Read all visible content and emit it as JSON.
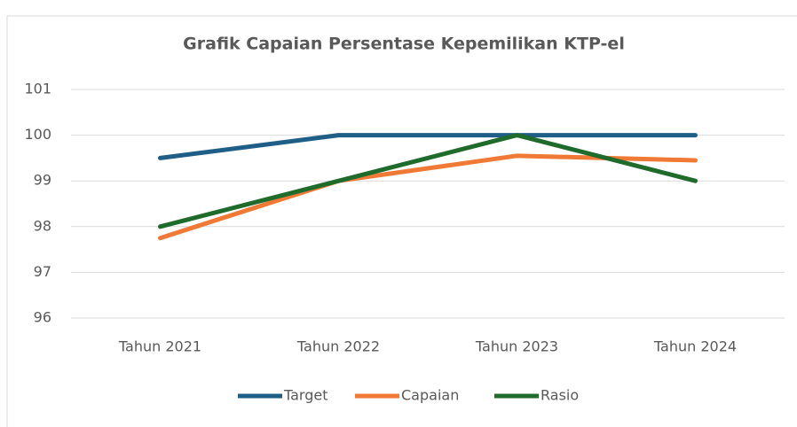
{
  "chart_data": {
    "type": "line",
    "title": "Grafik Capaian Persentase Kepemilikan KTP-el",
    "categories": [
      "Tahun 2021",
      "Tahun 2022",
      "Tahun 2023",
      "Tahun 2024"
    ],
    "series": [
      {
        "name": "Target",
        "color": "#1f5f87",
        "values": [
          99.5,
          100,
          100,
          100
        ]
      },
      {
        "name": "Capaian",
        "color": "#f07a35",
        "values": [
          97.75,
          99,
          99.55,
          99.45
        ]
      },
      {
        "name": "Rasio",
        "color": "#1f6b2b",
        "values": [
          98,
          99,
          100,
          99
        ]
      }
    ],
    "ylim": [
      96,
      101
    ],
    "yticks": [
      96,
      97,
      98,
      99,
      100,
      101
    ],
    "grid": true,
    "legend": "bottom"
  }
}
